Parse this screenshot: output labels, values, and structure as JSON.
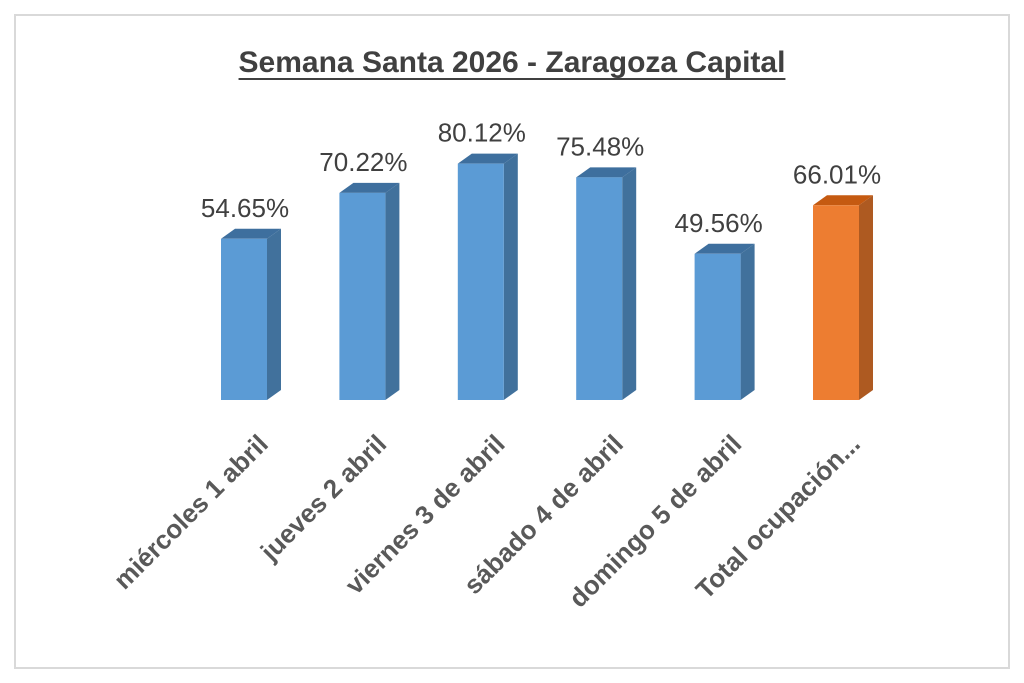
{
  "chart_data": {
    "type": "bar",
    "title": "Semana Santa 2026 - Zaragoza Capital",
    "categories": [
      "miércoles 1 abril",
      "jueves 2 abril",
      "viernes 3 de abril",
      "sábado 4 de abril",
      "domingo 5 de abril",
      "Total ocupación..."
    ],
    "values": [
      54.65,
      70.22,
      80.12,
      75.48,
      49.56,
      66.01
    ],
    "data_labels": [
      "54.65%",
      "70.22%",
      "80.12%",
      "75.48%",
      "49.56%",
      "66.01%"
    ],
    "value_unit": "%",
    "ylim": [
      0,
      100
    ],
    "grid": false,
    "legend": "none",
    "bar_style": "3d",
    "colors": {
      "default_front": "#5b9bd5",
      "default_side": "#41719c",
      "default_top": "#3e6f9e",
      "highlight_front": "#ed7d31",
      "highlight_side": "#ae5a21",
      "highlight_top": "#c55a11"
    },
    "highlight_index": 5
  }
}
